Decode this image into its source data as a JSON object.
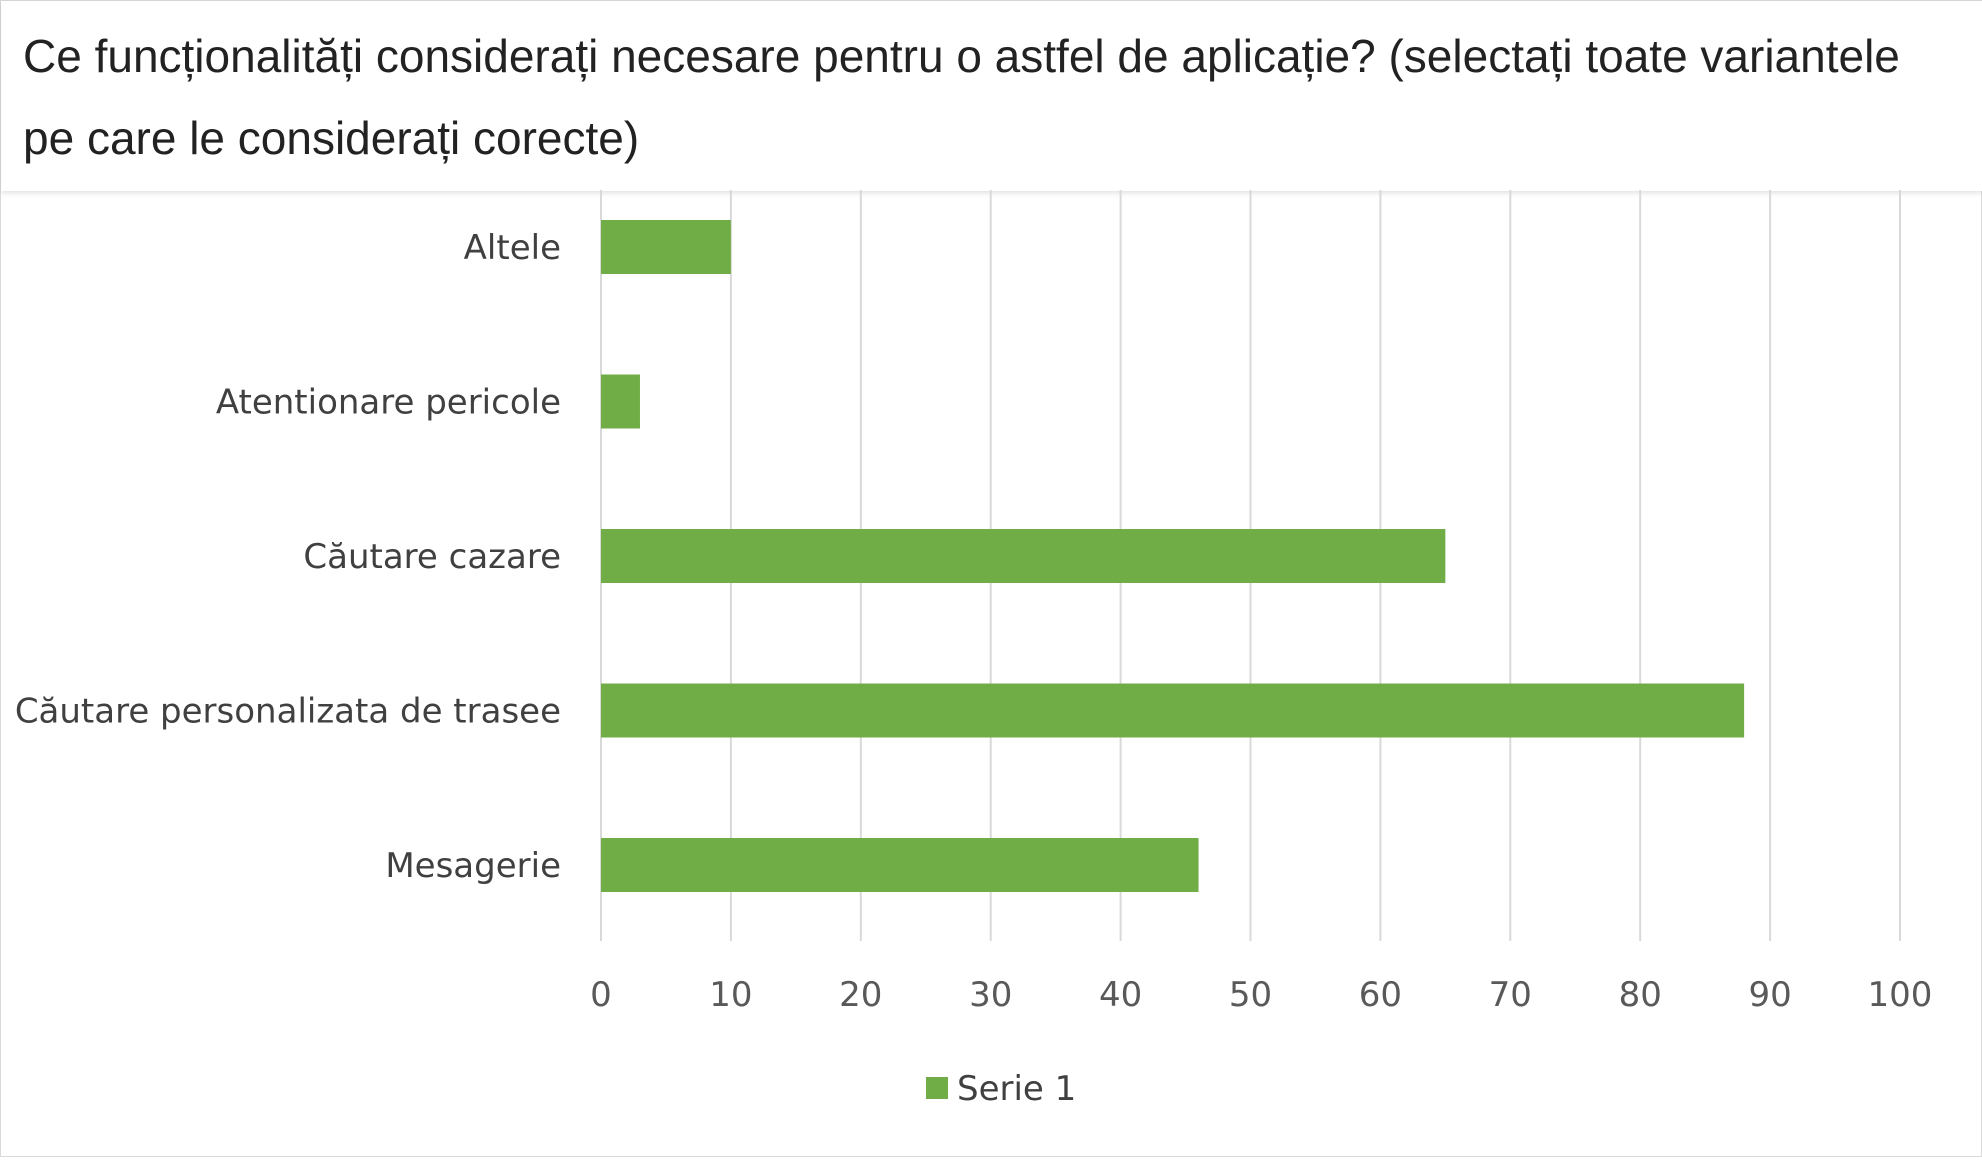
{
  "chart_data": {
    "type": "bar",
    "orientation": "horizontal",
    "title": "Ce funcționalități considerați necesare pentru o astfel de aplicație? (selectați toate variantele pe care le considerați corecte)",
    "categories": [
      "Altele",
      "Atentionare pericole",
      "Căutare cazare",
      "Căutare personalizata de trasee",
      "Mesagerie"
    ],
    "series": [
      {
        "name": "Serie 1",
        "color": "#70ad47",
        "values": [
          10,
          3,
          65,
          88,
          46
        ]
      }
    ],
    "xlim": [
      0,
      100
    ],
    "xticks": [
      "0",
      "10",
      "20",
      "30",
      "40",
      "50",
      "60",
      "70",
      "80",
      "90",
      "100"
    ],
    "grid": "vertical",
    "legend_position": "bottom"
  }
}
